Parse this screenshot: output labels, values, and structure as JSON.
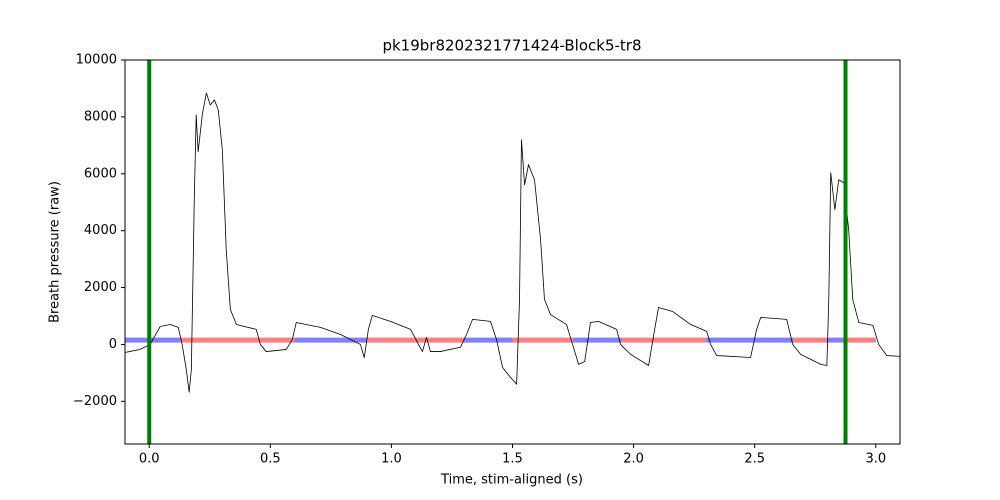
{
  "chart_data": {
    "type": "line",
    "title": "pk19br8202321771424-Block5-tr8",
    "x_label": "Time, stim-aligned (s)",
    "y_label": "Breath pressure (raw)",
    "xlim": [
      -0.1,
      3.1
    ],
    "ylim": [
      -3500,
      10000
    ],
    "xticks": [
      {
        "value": 0,
        "label": "0.0"
      },
      0.5,
      {
        "value": 1,
        "label": "1.0"
      },
      1.5,
      {
        "value": 2,
        "label": "2.0"
      },
      2.5,
      {
        "value": 3,
        "label": "3.0"
      }
    ],
    "yticks": [
      {
        "value": -2000,
        "label": "−2000"
      },
      0,
      2000,
      4000,
      6000,
      8000,
      10000
    ],
    "series": [
      {
        "name": "pressure",
        "color": "#000000",
        "x": [
          -0.099,
          -0.037,
          0.004,
          0.045,
          0.087,
          0.12,
          0.136,
          0.153,
          0.165,
          0.174,
          0.186,
          0.194,
          0.202,
          0.219,
          0.236,
          0.252,
          0.269,
          0.285,
          0.302,
          0.318,
          0.335,
          0.36,
          0.442,
          0.459,
          0.483,
          0.566,
          0.591,
          0.607,
          0.707,
          0.79,
          0.872,
          0.888,
          0.905,
          0.921,
          0.996,
          1.079,
          1.112,
          1.128,
          1.145,
          1.161,
          1.202,
          1.285,
          1.31,
          1.335,
          1.409,
          1.434,
          1.459,
          1.492,
          1.517,
          1.529,
          1.537,
          1.55,
          1.566,
          1.591,
          1.616,
          1.632,
          1.657,
          1.723,
          1.748,
          1.773,
          1.798,
          1.822,
          1.855,
          1.93,
          1.946,
          1.988,
          2.062,
          2.087,
          2.103,
          2.161,
          2.236,
          2.302,
          2.318,
          2.343,
          2.483,
          2.508,
          2.525,
          2.632,
          2.657,
          2.69,
          2.773,
          2.798,
          2.806,
          2.814,
          2.831,
          2.847,
          2.868,
          2.888,
          2.905,
          2.93,
          2.988,
          3.012,
          3.045,
          3.1
        ],
        "values": [
          -280,
          -175,
          0,
          630,
          700,
          600,
          0,
          -880,
          -1680,
          -880,
          5090,
          8070,
          6770,
          8070,
          8840,
          8420,
          8600,
          8250,
          6840,
          3330,
          1230,
          700,
          530,
          0,
          -250,
          -175,
          175,
          770,
          600,
          350,
          0,
          -460,
          530,
          1020,
          810,
          530,
          0,
          -250,
          250,
          -250,
          -250,
          -100,
          350,
          880,
          810,
          175,
          -810,
          -1160,
          -1400,
          1580,
          7190,
          5610,
          6320,
          5790,
          3680,
          1580,
          1050,
          700,
          0,
          -700,
          -600,
          770,
          810,
          530,
          0,
          -350,
          -740,
          530,
          1300,
          1160,
          700,
          460,
          0,
          -390,
          -460,
          530,
          950,
          880,
          0,
          -350,
          -700,
          -740,
          1580,
          6040,
          4740,
          5790,
          5680,
          4040,
          1580,
          770,
          670,
          0,
          -390,
          -420
        ]
      }
    ],
    "phase_level": 150,
    "phases": [
      {
        "x0": -0.1,
        "x1": 0.13,
        "color": "#7f7fff"
      },
      {
        "x0": 0.13,
        "x1": 0.6,
        "color": "#ff7f7f"
      },
      {
        "x0": 0.6,
        "x1": 0.9,
        "color": "#7f7fff"
      },
      {
        "x0": 0.9,
        "x1": 1.3,
        "color": "#ff7f7f"
      },
      {
        "x0": 1.3,
        "x1": 1.5,
        "color": "#7f7fff"
      },
      {
        "x0": 1.5,
        "x1": 1.75,
        "color": "#ff7f7f"
      },
      {
        "x0": 1.75,
        "x1": 1.95,
        "color": "#7f7fff"
      },
      {
        "x0": 1.95,
        "x1": 2.3,
        "color": "#ff7f7f"
      },
      {
        "x0": 2.3,
        "x1": 2.66,
        "color": "#7f7fff"
      },
      {
        "x0": 2.66,
        "x1": 2.8,
        "color": "#ff7f7f"
      },
      {
        "x0": 2.8,
        "x1": 2.88,
        "color": "#7f7fff"
      },
      {
        "x0": 2.88,
        "x1": 3.0,
        "color": "#ff7f7f"
      }
    ],
    "event_color": "#008000",
    "event_x": [
      0,
      2.875
    ]
  }
}
